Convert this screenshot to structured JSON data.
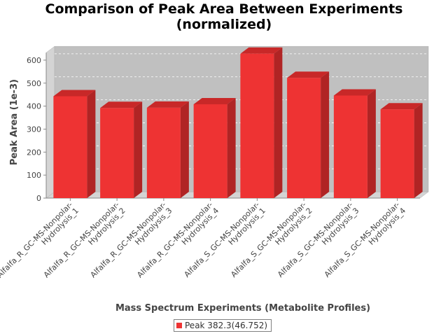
{
  "chart_data": {
    "type": "bar",
    "title": "Comparison of Peak Area Between Experiments\n(normalized)",
    "xlabel": "Mass Spectrum Experiments (Metabolite Profiles)",
    "ylabel": "Peak Area (1e-3)",
    "categories": [
      [
        "Alfalfa_R_GC-MS-Nonpolar-",
        "Hydrolysis_1"
      ],
      [
        "Alfalfa_R_GC-MS-Nonpolar-",
        "Hydrolysis_2"
      ],
      [
        "Alfalfa_R_GC-MS-Nonpolar-",
        "Hydrolysis_3"
      ],
      [
        "Alfalfa_R_GC-MS-Nonpolar-",
        "Hydrolysis_4"
      ],
      [
        "Alfalfa_S_GC-MS-Nonpolar-",
        "Hydrolysis_1"
      ],
      [
        "Alfalfa_S_GC-MS-Nonpolar-",
        "Hydrolysis_2"
      ],
      [
        "Alfalfa_S_GC-MS-Nonpolar-",
        "Hydrolysis_3"
      ],
      [
        "Alfalfa_S_GC-MS-Nonpolar-",
        "Hydrolysis_4"
      ]
    ],
    "series": [
      {
        "name": "Peak 382.3(46.752)",
        "color": "#ee3333",
        "values": [
          443,
          392,
          393,
          408,
          628,
          523,
          446,
          386
        ]
      }
    ],
    "ylim": [
      0,
      660
    ],
    "yticks": [
      0,
      100,
      200,
      300,
      400,
      500,
      600
    ],
    "grid": true,
    "legend_position": "bottom",
    "plot_background": "#c0c0c0"
  }
}
